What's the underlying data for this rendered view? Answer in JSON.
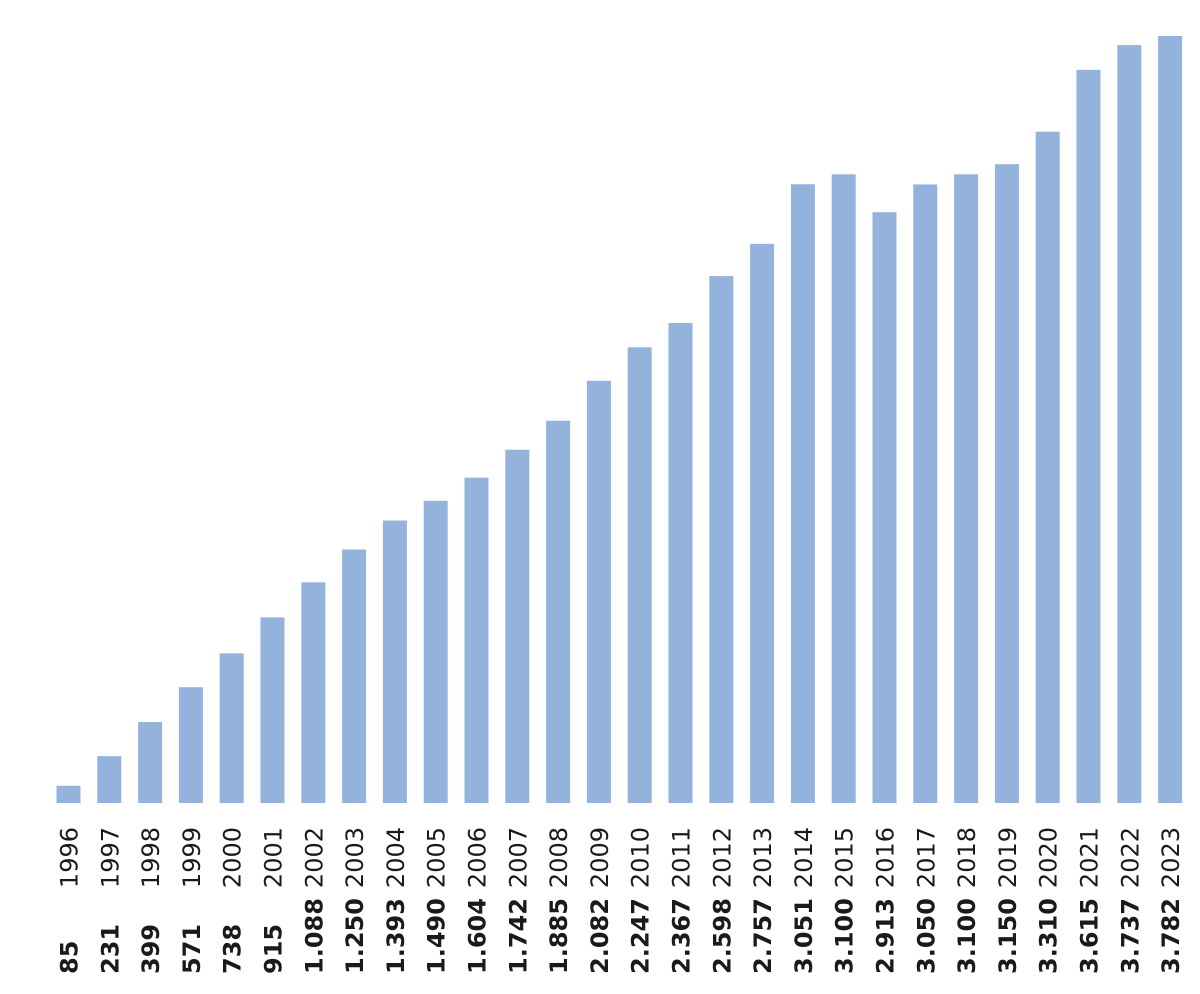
{
  "chart_data": {
    "type": "bar",
    "title": "",
    "xlabel": "",
    "ylabel": "",
    "categories": [
      "1996",
      "1997",
      "1998",
      "1999",
      "2000",
      "2001",
      "2002",
      "2003",
      "2004",
      "2005",
      "2006",
      "2007",
      "2008",
      "2009",
      "2010",
      "2011",
      "2012",
      "2013",
      "2014",
      "2015",
      "2016",
      "2017",
      "2018",
      "2019",
      "2020",
      "2021",
      "2022",
      "2023"
    ],
    "values": [
      85,
      231,
      399,
      571,
      738,
      915,
      1088,
      1250,
      1393,
      1490,
      1604,
      1742,
      1885,
      2082,
      2247,
      2367,
      2598,
      2757,
      3051,
      3100,
      2913,
      3050,
      3100,
      3150,
      3310,
      3615,
      3737,
      3782
    ],
    "value_labels": [
      "85",
      "231",
      "399",
      "571",
      "738",
      "915",
      "1.088",
      "1.250",
      "1.393",
      "1.490",
      "1.604",
      "1.742",
      "1.885",
      "2.082",
      "2.247",
      "2.367",
      "2.598",
      "2.757",
      "3.051",
      "3.100",
      "2.913",
      "3.050",
      "3.100",
      "3.150",
      "3.310",
      "3.615",
      "3.737",
      "3.782"
    ],
    "ylim": [
      0,
      3782
    ],
    "grid": false,
    "legend": "none",
    "bar_color": "#93b3dd"
  }
}
